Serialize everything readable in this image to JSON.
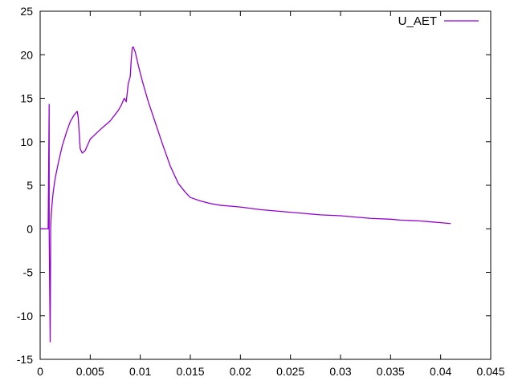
{
  "chart_data": {
    "type": "line",
    "title": "",
    "xlabel": "",
    "ylabel": "",
    "xlim": [
      0,
      0.045
    ],
    "ylim": [
      -15,
      25
    ],
    "xticks": [
      "0",
      "0.005",
      "0.01",
      "0.015",
      "0.02",
      "0.025",
      "0.03",
      "0.035",
      "0.04",
      "0.045"
    ],
    "xtick_values": [
      0,
      0.005,
      0.01,
      0.015,
      0.02,
      0.025,
      0.03,
      0.035,
      0.04,
      0.045
    ],
    "yticks": [
      "-15",
      "-10",
      "-5",
      "0",
      "5",
      "10",
      "15",
      "20",
      "25"
    ],
    "ytick_values": [
      -15,
      -10,
      -5,
      0,
      5,
      10,
      15,
      20,
      25
    ],
    "grid": false,
    "legend_position": "top-right",
    "series": [
      {
        "name": "U_AET",
        "color": "#9400d3",
        "x": [
          0.0,
          0.0008,
          0.0009,
          0.0009,
          0.001,
          0.00105,
          0.0011,
          0.0012,
          0.0013,
          0.0015,
          0.0018,
          0.0022,
          0.0026,
          0.003,
          0.0034,
          0.0037,
          0.0038,
          0.0039,
          0.004,
          0.0042,
          0.0045,
          0.005,
          0.006,
          0.007,
          0.0078,
          0.0081,
          0.0084,
          0.0086,
          0.0088,
          0.009,
          0.0091,
          0.0092,
          0.0093,
          0.0095,
          0.0098,
          0.0102,
          0.0108,
          0.0115,
          0.0122,
          0.013,
          0.0138,
          0.0145,
          0.015,
          0.016,
          0.017,
          0.018,
          0.02,
          0.022,
          0.025,
          0.028,
          0.03,
          0.033,
          0.035,
          0.036,
          0.038,
          0.039,
          0.04,
          0.041
        ],
        "y": [
          0,
          0,
          14.3,
          0,
          -13.0,
          0,
          1.5,
          3.0,
          4.2,
          5.8,
          7.5,
          9.5,
          11.0,
          12.3,
          13.1,
          13.5,
          12.8,
          11.0,
          9.2,
          8.7,
          9.0,
          10.3,
          11.4,
          12.4,
          13.6,
          14.2,
          15.0,
          14.6,
          16.7,
          17.5,
          19.5,
          20.8,
          20.9,
          20.3,
          18.8,
          17.0,
          14.6,
          12.2,
          9.8,
          7.2,
          5.2,
          4.2,
          3.6,
          3.2,
          2.9,
          2.7,
          2.5,
          2.2,
          1.9,
          1.6,
          1.5,
          1.2,
          1.1,
          1.0,
          0.9,
          0.8,
          0.7,
          0.6
        ]
      }
    ]
  }
}
